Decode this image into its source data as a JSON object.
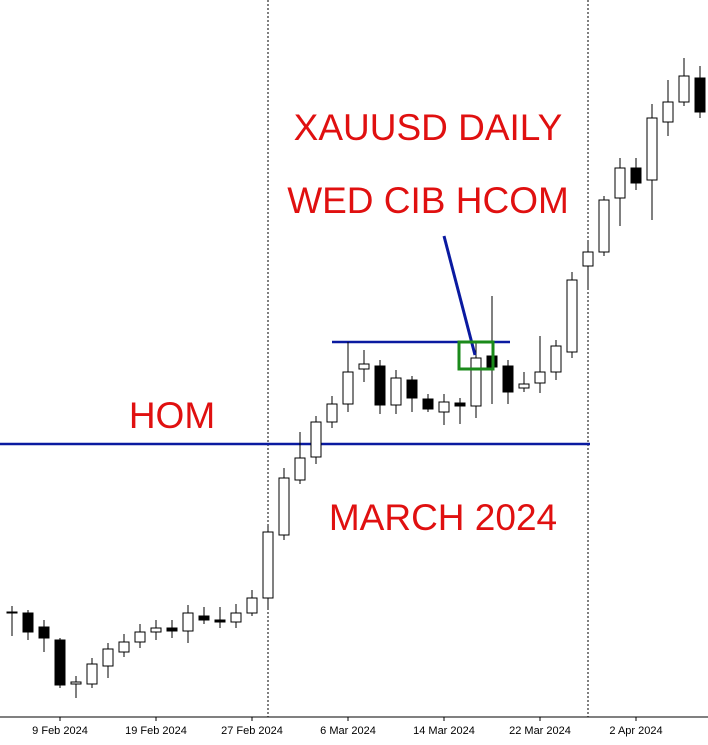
{
  "chart_data": {
    "type": "candlestick",
    "annotations": [
      "XAUUSD DAILY",
      "WED CIB HCOM",
      "HOM",
      "MARCH 2024"
    ],
    "categories": [
      null,
      null,
      null,
      "9 Feb 2024",
      null,
      null,
      null,
      null,
      null,
      "19 Feb 2024",
      null,
      null,
      null,
      null,
      null,
      "27 Feb 2024",
      null,
      null,
      null,
      null,
      null,
      "6 Mar 2024",
      null,
      null,
      null,
      null,
      null,
      "14 Mar 2024",
      null,
      null,
      null,
      null,
      null,
      "22 Mar 2024",
      null,
      null,
      null,
      null,
      null,
      "2 Apr 2024",
      null,
      null,
      null,
      null
    ],
    "open": [
      2124,
      2123.5,
      2116.5,
      2110,
      2088,
      2088,
      2097,
      2104,
      2109,
      2114,
      2116,
      2114.5,
      2122,
      2120,
      2119,
      2123.5,
      2131,
      2162.5,
      2190,
      2201.5,
      2219,
      2228,
      2245.5,
      2247,
      2227.5,
      2240,
      2230.5,
      2224,
      2228.5,
      2227,
      2252,
      2247,
      2236,
      2238.5,
      2244,
      2254,
      2297,
      2304,
      2331,
      2346,
      2340,
      2369,
      2379,
      2391
    ],
    "high": [
      2127,
      2125,
      2120,
      2111,
      2092,
      2101,
      2108.5,
      2113,
      2118,
      2120,
      2120,
      2127.5,
      2126.5,
      2126.5,
      2128,
      2135,
      2168,
      2196,
      2214,
      2222,
      2232,
      2259,
      2255,
      2250,
      2245,
      2242,
      2233,
      2233,
      2231,
      2259,
      2282,
      2250,
      2244,
      2262,
      2260,
      2294,
      2310,
      2332,
      2351,
      2351,
      2378,
      2390,
      2401,
      2397
    ],
    "low": [
      2112,
      2110,
      2104,
      2086,
      2081,
      2086,
      2091,
      2101.5,
      2106,
      2110,
      2111,
      2108.5,
      2118,
      2116,
      2116,
      2122,
      2126,
      2160,
      2188,
      2198,
      2216,
      2224,
      2239,
      2223,
      2223,
      2224,
      2224,
      2217.5,
      2218,
      2221,
      2228,
      2228,
      2234,
      2233.5,
      2240,
      2251,
      2285,
      2302,
      2317,
      2335,
      2320,
      2362,
      2377,
      2371
    ],
    "close": [
      2124,
      2114,
      2111,
      2087.5,
      2089,
      2098,
      2105.5,
      2109,
      2114,
      2116,
      2114.5,
      2123.5,
      2120,
      2119,
      2123.5,
      2131,
      2164,
      2191,
      2201,
      2219,
      2228,
      2244,
      2248,
      2227.5,
      2241,
      2231,
      2225.5,
      2229,
      2227,
      2251,
      2246.5,
      2234,
      2238,
      2244,
      2257,
      2290,
      2304,
      2330,
      2346,
      2338.5,
      2371,
      2379,
      2392,
      2374
    ],
    "hlines": [
      2208,
      2259
    ],
    "hline_color": "#0a1aa0",
    "up_color": "#ffffff",
    "down_color": "#000000",
    "ylim": [
      2072,
      2430
    ]
  }
}
